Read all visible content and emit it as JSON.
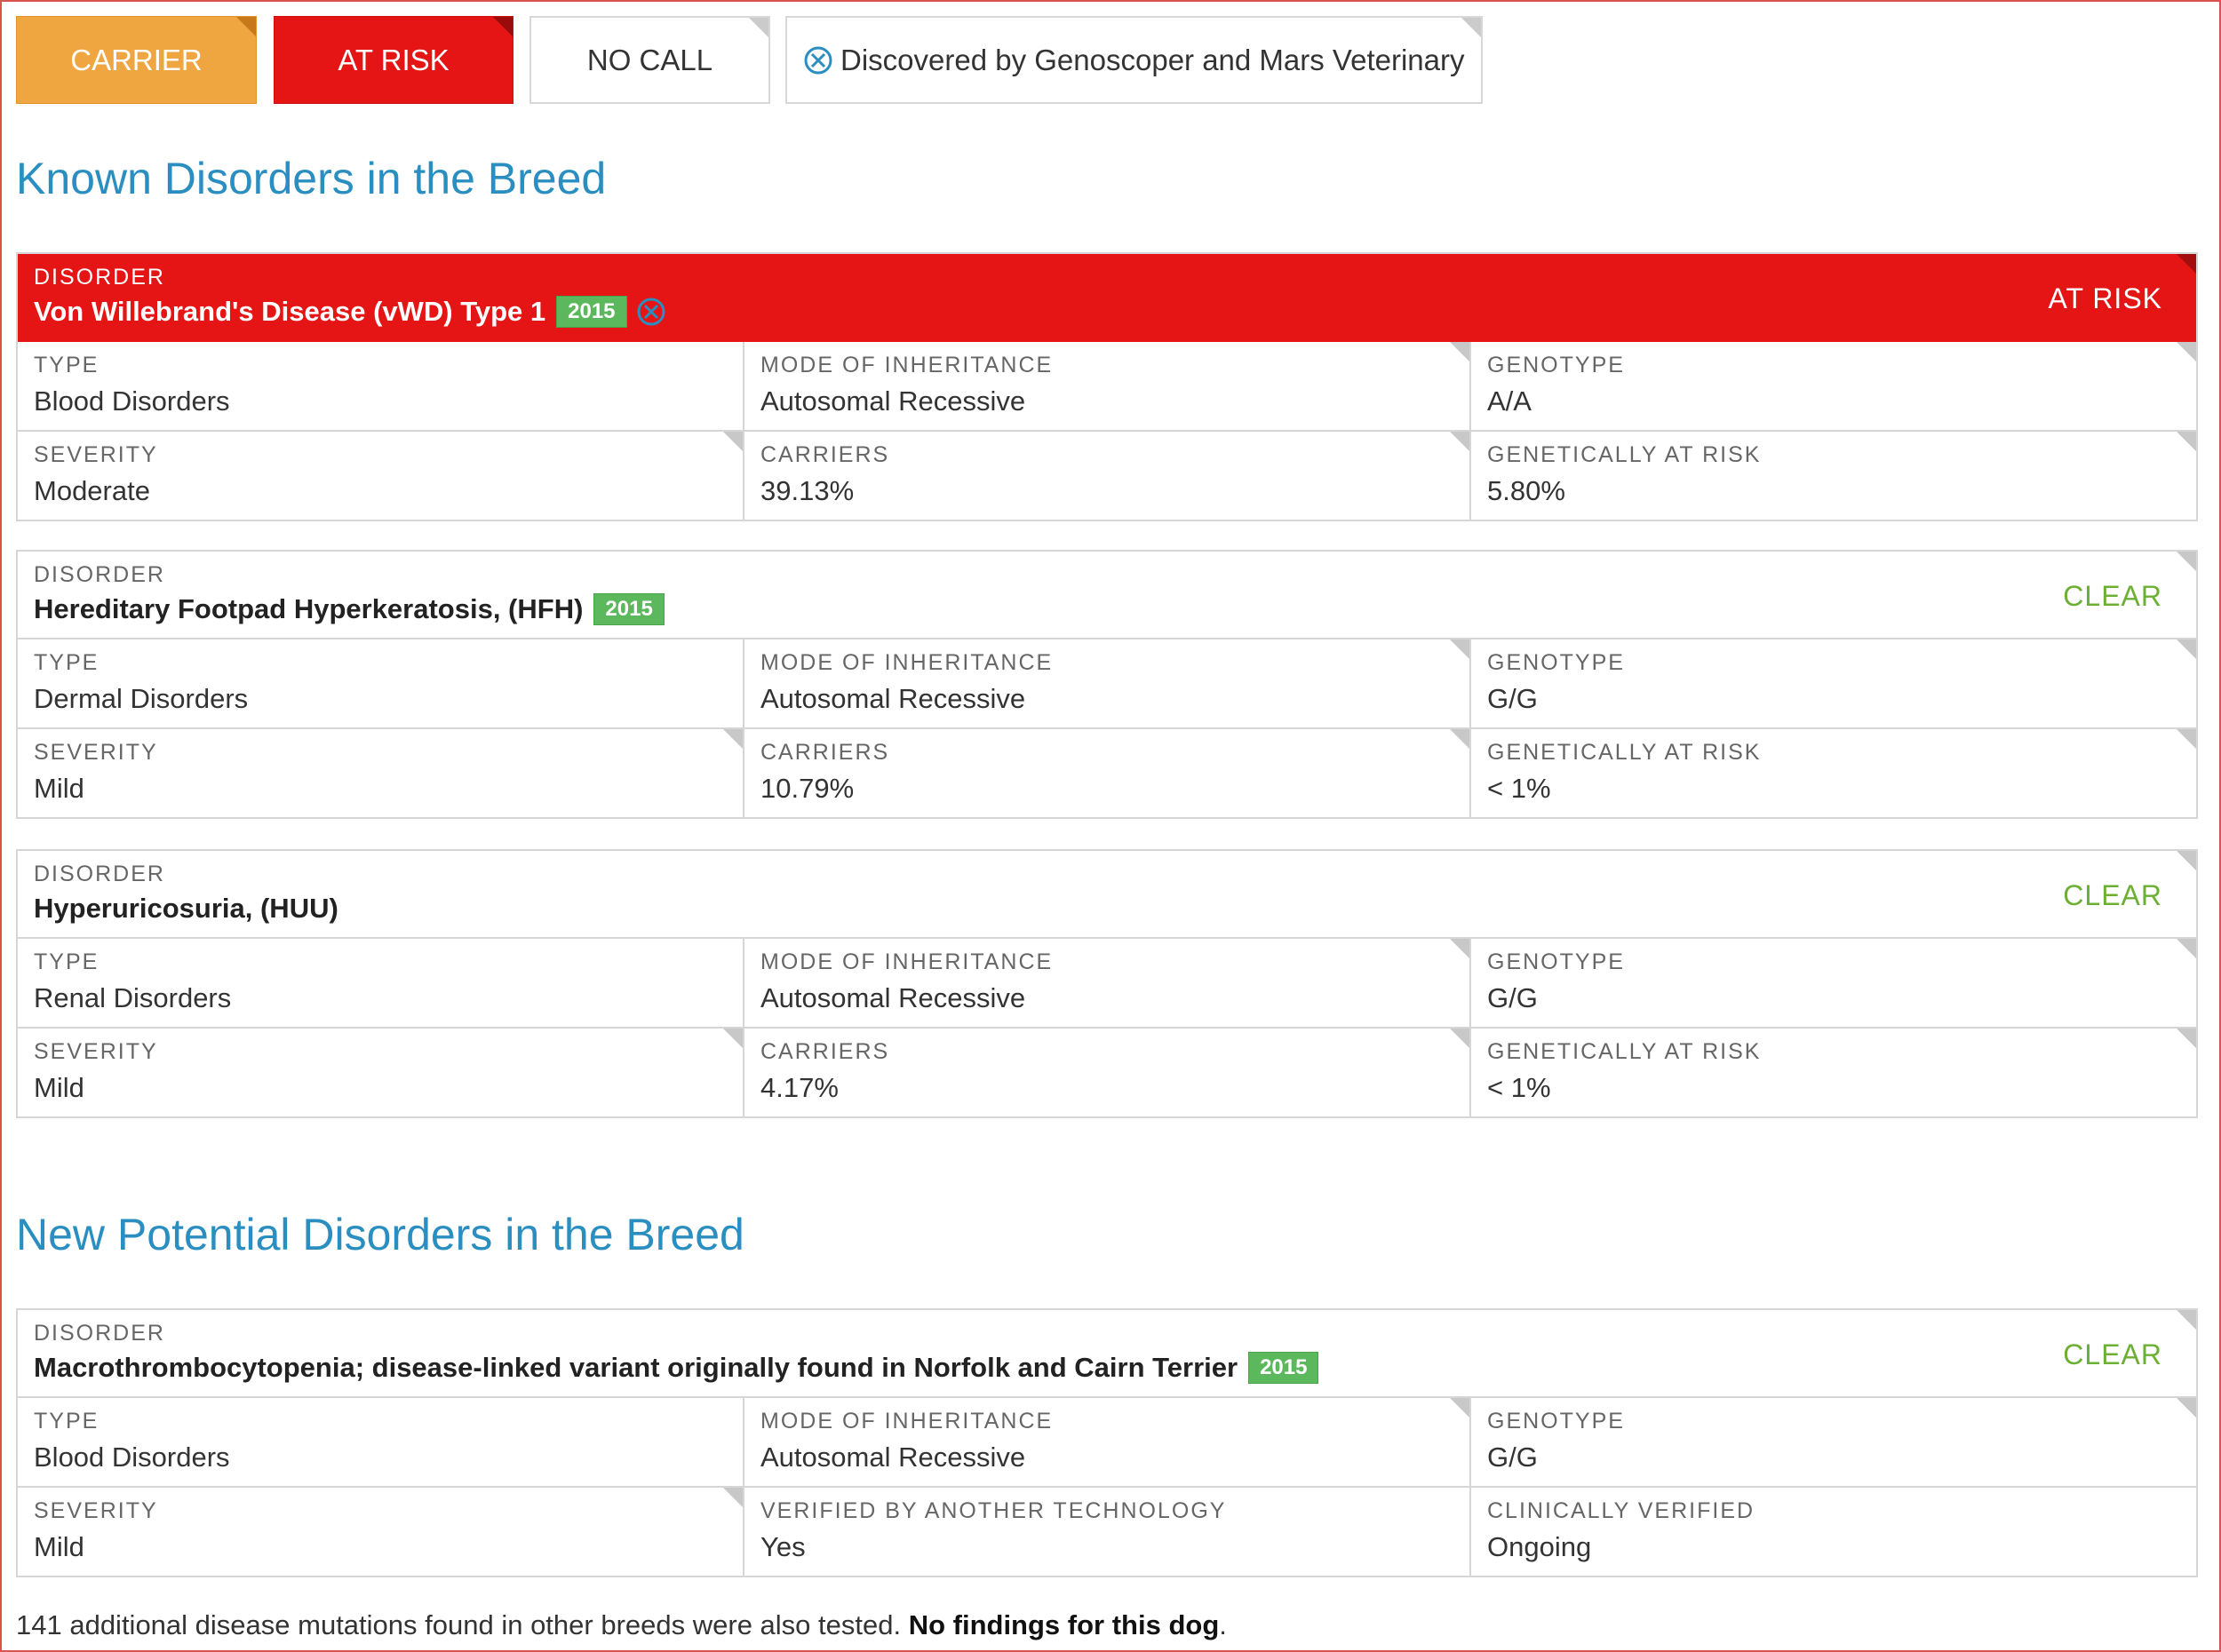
{
  "legend": {
    "carrier": "CARRIER",
    "at_risk": "AT RISK",
    "no_call": "NO CALL",
    "discovered": "Discovered by Genoscoper and Mars Veterinary"
  },
  "sections": {
    "known": "Known Disorders in the Breed",
    "new_potential": "New Potential Disorders in the Breed"
  },
  "labels": {
    "disorder": "DISORDER",
    "type": "TYPE",
    "mode": "MODE OF INHERITANCE",
    "genotype": "GENOTYPE",
    "severity": "SEVERITY",
    "carriers": "CARRIERS",
    "genetically_at_risk": "GENETICALLY AT RISK",
    "verified": "VERIFIED BY ANOTHER TECHNOLOGY",
    "clinically_verified": "CLINICALLY VERIFIED"
  },
  "disorders": [
    {
      "name": "Von Willebrand's Disease (vWD) Type 1",
      "badge": "2015",
      "status": "AT RISK",
      "type": "Blood Disorders",
      "mode": "Autosomal Recessive",
      "genotype": "A/A",
      "severity": "Moderate",
      "carriers": "39.13%",
      "genetically_at_risk": "5.80%"
    },
    {
      "name": "Hereditary Footpad Hyperkeratosis, (HFH)",
      "badge": "2015",
      "status": "CLEAR",
      "type": "Dermal Disorders",
      "mode": "Autosomal Recessive",
      "genotype": "G/G",
      "severity": "Mild",
      "carriers": "10.79%",
      "genetically_at_risk": "< 1%"
    },
    {
      "name": "Hyperuricosuria, (HUU)",
      "status": "CLEAR",
      "type": "Renal Disorders",
      "mode": "Autosomal Recessive",
      "genotype": "G/G",
      "severity": "Mild",
      "carriers": "4.17%",
      "genetically_at_risk": "< 1%"
    },
    {
      "name": "Macrothrombocytopenia; disease-linked variant originally found in Norfolk and Cairn Terrier",
      "badge": "2015",
      "status": "CLEAR",
      "type": "Blood Disorders",
      "mode": "Autosomal Recessive",
      "genotype": "G/G",
      "severity": "Mild",
      "verified": "Yes",
      "clinically_verified": "Ongoing"
    }
  ],
  "footer": {
    "text": "141 additional disease mutations found in other breeds were also tested. ",
    "bold": "No findings for this dog",
    "end": "."
  },
  "colors": {
    "carrier": "#efa640",
    "at_risk": "#e51515",
    "clear": "#6cb033",
    "title": "#2a8fc0",
    "badge": "#5cb85c"
  },
  "icons": {
    "discovered": "circle-x-icon"
  }
}
